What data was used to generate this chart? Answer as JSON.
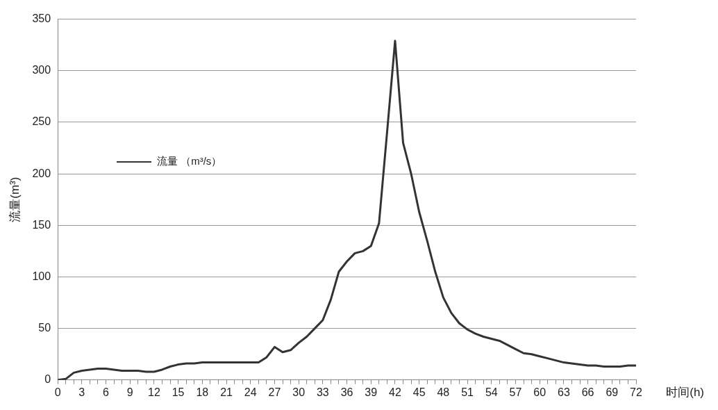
{
  "chart_data": {
    "type": "line",
    "xlabel": "时间(h)",
    "ylabel": "流量(m³)",
    "x": [
      0,
      1,
      2,
      3,
      4,
      5,
      6,
      7,
      8,
      9,
      10,
      11,
      12,
      13,
      14,
      15,
      16,
      17,
      18,
      19,
      20,
      21,
      22,
      23,
      24,
      25,
      26,
      27,
      28,
      29,
      30,
      31,
      32,
      33,
      34,
      35,
      36,
      37,
      38,
      39,
      40,
      41,
      42,
      43,
      44,
      45,
      46,
      47,
      48,
      49,
      50,
      51,
      52,
      53,
      54,
      55,
      56,
      57,
      58,
      59,
      60,
      61,
      62,
      63,
      64,
      65,
      66,
      67,
      68,
      69,
      70,
      71,
      72
    ],
    "series": [
      {
        "name": "流量 （m³/s）",
        "color": "#333333",
        "values": [
          0,
          1,
          7,
          9,
          10,
          11,
          11,
          10,
          9,
          9,
          9,
          8,
          8,
          10,
          13,
          15,
          16,
          16,
          17,
          17,
          17,
          17,
          17,
          17,
          17,
          17,
          22,
          32,
          27,
          29,
          36,
          42,
          50,
          58,
          78,
          105,
          115,
          123,
          125,
          130,
          152,
          240,
          329,
          230,
          200,
          163,
          135,
          105,
          80,
          65,
          55,
          49,
          45,
          42,
          40,
          38,
          34,
          30,
          26,
          25,
          23,
          21,
          19,
          17,
          16,
          15,
          14,
          14,
          13,
          13,
          13,
          14,
          14
        ]
      }
    ],
    "xlim": [
      0,
      72
    ],
    "xticks": [
      0,
      {
        "value": 1,
        "label": null
      },
      {
        "value": 2,
        "label": null
      },
      3,
      {
        "value": 4,
        "label": null
      },
      {
        "value": 5,
        "label": null
      },
      6,
      {
        "value": 7,
        "label": null
      },
      {
        "value": 8,
        "label": null
      },
      9,
      {
        "value": 10,
        "label": null
      },
      {
        "value": 11,
        "label": null
      },
      12,
      {
        "value": 13,
        "label": null
      },
      {
        "value": 14,
        "label": null
      },
      15,
      {
        "value": 16,
        "label": null
      },
      {
        "value": 17,
        "label": null
      },
      18,
      {
        "value": 19,
        "label": null
      },
      {
        "value": 20,
        "label": null
      },
      21,
      {
        "value": 22,
        "label": null
      },
      {
        "value": 23,
        "label": null
      },
      24,
      {
        "value": 25,
        "label": null
      },
      {
        "value": 26,
        "label": null
      },
      27,
      {
        "value": 28,
        "label": null
      },
      {
        "value": 29,
        "label": null
      },
      30,
      {
        "value": 31,
        "label": null
      },
      {
        "value": 32,
        "label": null
      },
      33,
      {
        "value": 34,
        "label": null
      },
      {
        "value": 35,
        "label": null
      },
      36,
      {
        "value": 37,
        "label": null
      },
      {
        "value": 38,
        "label": null
      },
      39,
      {
        "value": 40,
        "label": null
      },
      {
        "value": 41,
        "label": null
      },
      42,
      {
        "value": 43,
        "label": null
      },
      {
        "value": 44,
        "label": null
      },
      45,
      {
        "value": 46,
        "label": null
      },
      {
        "value": 47,
        "label": null
      },
      48,
      {
        "value": 49,
        "label": null
      },
      {
        "value": 50,
        "label": null
      },
      51,
      {
        "value": 52,
        "label": null
      },
      {
        "value": 53,
        "label": null
      },
      54,
      {
        "value": 55,
        "label": null
      },
      {
        "value": 56,
        "label": null
      },
      57,
      {
        "value": 58,
        "label": null
      },
      {
        "value": 59,
        "label": null
      },
      60,
      {
        "value": 61,
        "label": null
      },
      {
        "value": 62,
        "label": null
      },
      63,
      {
        "value": 64,
        "label": null
      },
      {
        "value": 65,
        "label": null
      },
      66,
      {
        "value": 67,
        "label": null
      },
      {
        "value": 68,
        "label": null
      },
      69,
      {
        "value": 70,
        "label": null
      },
      {
        "value": 71,
        "label": null
      },
      72
    ],
    "ylim": [
      0,
      350
    ],
    "yticks": [
      0,
      50,
      100,
      150,
      200,
      250,
      300,
      350
    ],
    "grid": "y",
    "legend": "top left",
    "marker": "none",
    "line_style": "solid"
  }
}
